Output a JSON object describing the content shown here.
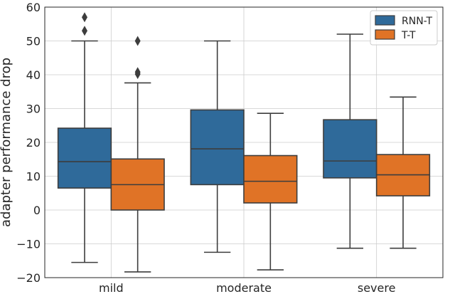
{
  "chart_data": {
    "type": "boxplot",
    "title": "",
    "xlabel": "",
    "ylabel": "adapter performance drop",
    "categories": [
      "mild",
      "moderate",
      "severe"
    ],
    "ylim": [
      -20,
      60
    ],
    "yticks": [
      -20,
      -10,
      0,
      10,
      20,
      30,
      40,
      50,
      60
    ],
    "grid": true,
    "legend": {
      "position": "top-right"
    },
    "series": [
      {
        "name": "RNN-T",
        "color": "#2f6a9a",
        "boxes": [
          {
            "whislo": -15.5,
            "q1": 6.5,
            "med": 14.3,
            "q3": 24.2,
            "whishi": 50,
            "fliers": [
              53,
              57
            ]
          },
          {
            "whislo": -12.5,
            "q1": 7.5,
            "med": 18.1,
            "q3": 29.6,
            "whishi": 50,
            "fliers": []
          },
          {
            "whislo": -11.3,
            "q1": 9.5,
            "med": 14.5,
            "q3": 26.7,
            "whishi": 52,
            "fliers": []
          }
        ]
      },
      {
        "name": "T-T",
        "color": "#e07326",
        "boxes": [
          {
            "whislo": -18.3,
            "q1": 0,
            "med": 7.5,
            "q3": 15.1,
            "whishi": 37.6,
            "fliers": [
              40.2,
              40.8,
              50
            ]
          },
          {
            "whislo": -17.7,
            "q1": 2.1,
            "med": 8.5,
            "q3": 16.1,
            "whishi": 28.6,
            "fliers": []
          },
          {
            "whislo": -11.3,
            "q1": 4.2,
            "med": 10.4,
            "q3": 16.4,
            "whishi": 33.4,
            "fliers": []
          }
        ]
      }
    ]
  }
}
